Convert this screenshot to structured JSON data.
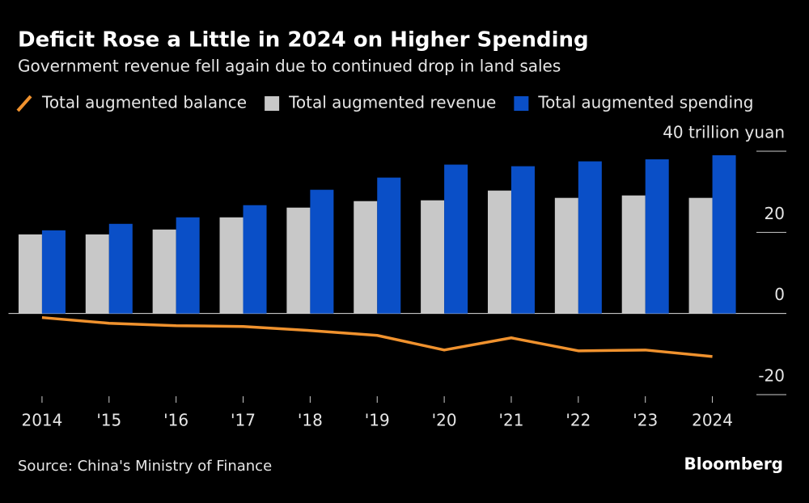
{
  "chart_data": {
    "type": "bar-line",
    "title": "Deficit Rose a Little in 2024 on Higher Spending",
    "subtitle": "Government revenue fell again due to continued drop in land sales",
    "categories": [
      "2014",
      "'15",
      "'16",
      "'17",
      "'18",
      "'19",
      "'20",
      "'21",
      "'22",
      "'23",
      "2024"
    ],
    "series": [
      {
        "name": "Total augmented balance",
        "type": "line",
        "color": "#f0922e",
        "values": [
          -1.0,
          -2.4,
          -3.0,
          -3.2,
          -4.2,
          -5.4,
          -9.0,
          -6.0,
          -9.2,
          -9.0,
          -10.6
        ]
      },
      {
        "name": "Total augmented revenue",
        "type": "bar",
        "color": "#c8c8c8",
        "values": [
          19.5,
          19.5,
          20.7,
          23.7,
          26.1,
          27.7,
          27.9,
          30.3,
          28.5,
          29.1,
          28.5
        ]
      },
      {
        "name": "Total augmented spending",
        "type": "bar",
        "color": "#0a4fc7",
        "values": [
          20.5,
          22.1,
          23.7,
          26.7,
          30.5,
          33.5,
          36.7,
          36.3,
          37.5,
          38.0,
          39.0
        ]
      }
    ],
    "ylim": [
      -20,
      40
    ],
    "yticks": [
      {
        "value": 40,
        "label": "40 trillion yuan"
      },
      20,
      0,
      -20
    ],
    "source": "Source: China's Ministry of Finance",
    "brand": "Bloomberg"
  }
}
